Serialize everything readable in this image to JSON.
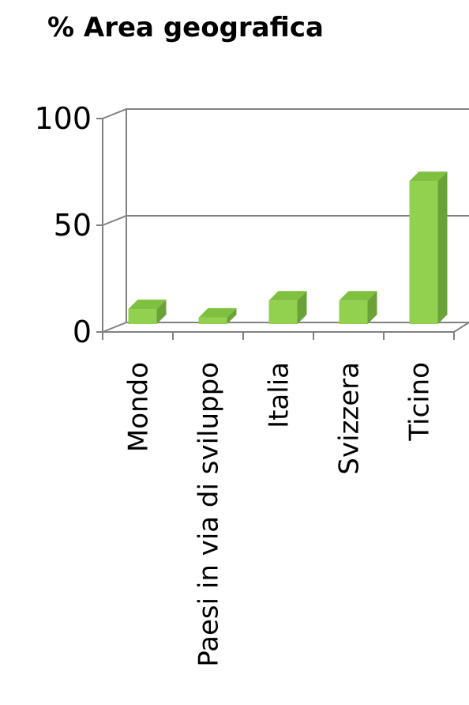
{
  "chart_data": {
    "type": "bar",
    "title": "% Area geografica",
    "categories": [
      "Mondo",
      "Paesi in via di sviluppo",
      "Italia",
      "Svizzera",
      "Ticino"
    ],
    "values": [
      7,
      3,
      11,
      11,
      67
    ],
    "yticks": [
      0,
      50,
      100
    ],
    "ylim": [
      0,
      100
    ],
    "xlabel": "",
    "ylabel": "",
    "grid": true,
    "bar_color": "#92d050"
  }
}
